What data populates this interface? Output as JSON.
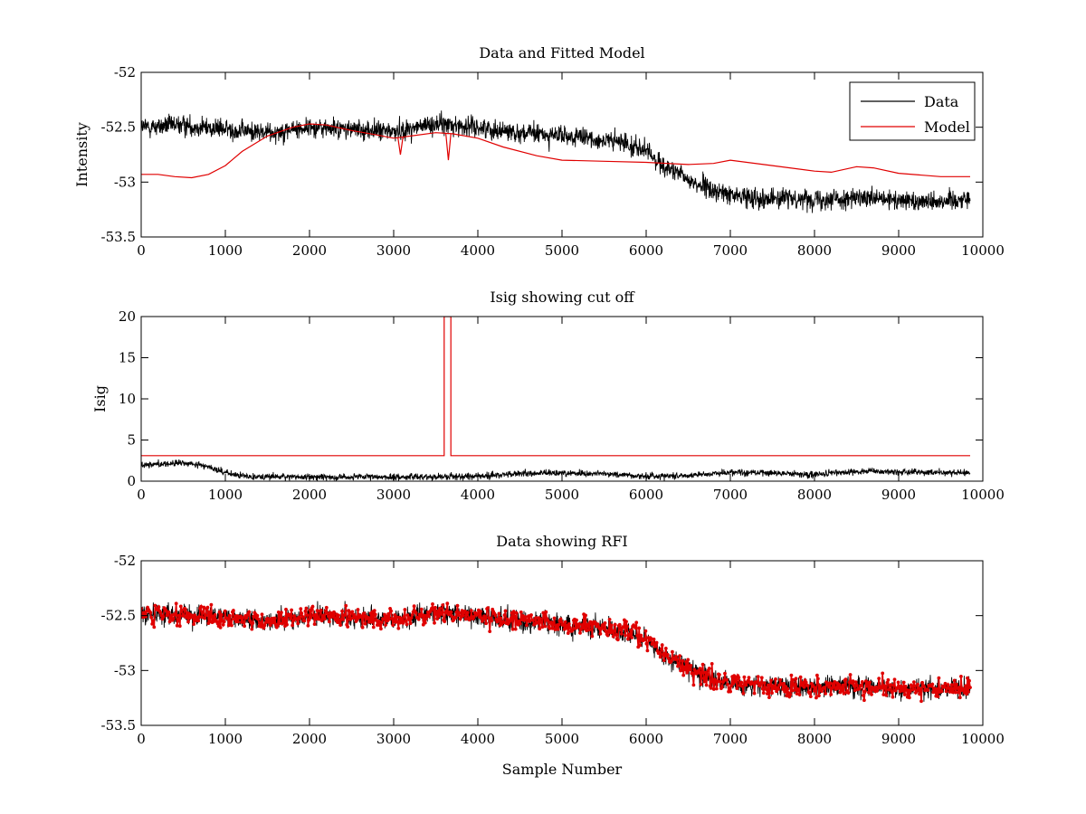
{
  "chart_data": [
    {
      "type": "line",
      "title": "Data and Fitted Model",
      "xlabel": "",
      "ylabel": "Intensity",
      "xlim": [
        0,
        10000
      ],
      "ylim": [
        -53.5,
        -52
      ],
      "xticks": [
        0,
        1000,
        2000,
        3000,
        4000,
        5000,
        6000,
        7000,
        8000,
        9000,
        10000
      ],
      "yticks": [
        -53.5,
        -53,
        -52.5,
        -52
      ],
      "xtick_labels": [
        "0",
        "1000",
        "2000",
        "3000",
        "4000",
        "5000",
        "6000",
        "7000",
        "8000",
        "9000",
        "10000"
      ],
      "ytick_labels": [
        "-53.5",
        "-53",
        "-52.5",
        "-52"
      ],
      "grid": false,
      "legend_position": "top-right",
      "legend": [
        "Data",
        "Model"
      ],
      "x_range": [
        0,
        9850
      ],
      "series": [
        {
          "name": "Data",
          "color": "#000000",
          "noise": 0.08,
          "x": [
            0,
            500,
            1000,
            1500,
            2000,
            2500,
            3000,
            3500,
            4000,
            4500,
            5000,
            5500,
            5800,
            6000,
            6200,
            6500,
            6800,
            7000,
            7500,
            8000,
            8500,
            9000,
            9500,
            9850
          ],
          "y": [
            -52.5,
            -52.48,
            -52.52,
            -52.55,
            -52.5,
            -52.52,
            -52.54,
            -52.47,
            -52.5,
            -52.55,
            -52.58,
            -52.62,
            -52.65,
            -52.72,
            -52.85,
            -52.98,
            -53.08,
            -53.12,
            -53.15,
            -53.15,
            -53.15,
            -53.17,
            -53.17,
            -53.15
          ]
        },
        {
          "name": "Model",
          "color": "#e00000",
          "noise": 0,
          "x": [
            0,
            200,
            400,
            600,
            800,
            1000,
            1200,
            1500,
            1800,
            2000,
            2200,
            2500,
            2800,
            3000,
            3200,
            3500,
            3700,
            4000,
            4300,
            4700,
            5000,
            5500,
            6000,
            6500,
            6800,
            7000,
            7500,
            8000,
            8200,
            8500,
            8700,
            9000,
            9500,
            9850
          ],
          "y": [
            -52.93,
            -52.93,
            -52.95,
            -52.96,
            -52.93,
            -52.85,
            -52.72,
            -52.58,
            -52.5,
            -52.47,
            -52.48,
            -52.53,
            -52.57,
            -52.6,
            -52.58,
            -52.55,
            -52.56,
            -52.6,
            -52.68,
            -52.76,
            -52.8,
            -52.81,
            -52.82,
            -52.84,
            -52.83,
            -52.8,
            -52.85,
            -52.9,
            -52.91,
            -52.86,
            -52.87,
            -52.92,
            -52.95,
            -52.95
          ]
        }
      ],
      "dips": [
        {
          "x": 3080,
          "y": -52.75
        },
        {
          "x": 3650,
          "y": -52.8
        }
      ]
    },
    {
      "type": "line",
      "title": "Isig showing cut off",
      "xlabel": "",
      "ylabel": "Isig",
      "xlim": [
        0,
        10000
      ],
      "ylim": [
        0,
        20
      ],
      "xticks": [
        0,
        1000,
        2000,
        3000,
        4000,
        5000,
        6000,
        7000,
        8000,
        9000,
        10000
      ],
      "yticks": [
        0,
        5,
        10,
        15,
        20
      ],
      "xtick_labels": [
        "0",
        "1000",
        "2000",
        "3000",
        "4000",
        "5000",
        "6000",
        "7000",
        "8000",
        "9000",
        "10000"
      ],
      "ytick_labels": [
        "0",
        "5",
        "10",
        "15",
        "20"
      ],
      "grid": false,
      "x_range": [
        0,
        9850
      ],
      "series": [
        {
          "name": "Isig",
          "color": "#000000",
          "noise": 0.35,
          "x": [
            0,
            500,
            800,
            1000,
            1200,
            2000,
            3000,
            4000,
            4500,
            5000,
            5500,
            6000,
            6500,
            7000,
            7500,
            8000,
            8500,
            9000,
            9850
          ],
          "y": [
            2.0,
            2.2,
            1.8,
            1.0,
            0.6,
            0.5,
            0.5,
            0.6,
            0.9,
            1.0,
            0.9,
            0.6,
            0.7,
            1.1,
            1.0,
            0.8,
            1.2,
            1.1,
            1.0
          ]
        },
        {
          "name": "Cut-off",
          "color": "#e00000",
          "noise": 0,
          "x": [
            0,
            3600,
            3600,
            3680,
            3680,
            9850
          ],
          "y": [
            3.1,
            3.1,
            20,
            20,
            3.1,
            3.1
          ]
        }
      ]
    },
    {
      "type": "line",
      "title": "Data showing RFI",
      "xlabel": "Sample Number",
      "ylabel": "",
      "xlim": [
        0,
        10000
      ],
      "ylim": [
        -53.5,
        -52
      ],
      "xticks": [
        0,
        1000,
        2000,
        3000,
        4000,
        5000,
        6000,
        7000,
        8000,
        9000,
        10000
      ],
      "yticks": [
        -53.5,
        -53,
        -52.5,
        -52
      ],
      "xtick_labels": [
        "0",
        "1000",
        "2000",
        "3000",
        "4000",
        "5000",
        "6000",
        "7000",
        "8000",
        "9000",
        "10000"
      ],
      "ytick_labels": [
        "-53.5",
        "-53",
        "-52.5",
        "-52"
      ],
      "grid": false,
      "x_range": [
        0,
        9850
      ],
      "series": [
        {
          "name": "Data",
          "color": "#000000",
          "noise": 0.08,
          "x": [
            0,
            500,
            1000,
            1500,
            2000,
            2500,
            3000,
            3500,
            4000,
            4500,
            5000,
            5500,
            5800,
            6000,
            6200,
            6500,
            6800,
            7000,
            7500,
            8000,
            8500,
            9000,
            9500,
            9850
          ],
          "y": [
            -52.5,
            -52.48,
            -52.52,
            -52.55,
            -52.5,
            -52.52,
            -52.54,
            -52.47,
            -52.5,
            -52.55,
            -52.58,
            -52.62,
            -52.65,
            -52.72,
            -52.85,
            -52.98,
            -53.08,
            -53.12,
            -53.15,
            -53.15,
            -53.15,
            -53.17,
            -53.17,
            -53.15
          ]
        },
        {
          "name": "RFI",
          "color": "#e00000",
          "marker": "dot",
          "noise": 0.08,
          "x": [
            0,
            500,
            1000,
            1500,
            2000,
            2500,
            3000,
            3500,
            4000,
            4500,
            5000,
            5500,
            5800,
            6000,
            6200,
            6500,
            6800,
            7000,
            7500,
            8000,
            8500,
            9000,
            9500,
            9850
          ],
          "y": [
            -52.5,
            -52.48,
            -52.52,
            -52.55,
            -52.5,
            -52.52,
            -52.54,
            -52.47,
            -52.5,
            -52.55,
            -52.58,
            -52.62,
            -52.65,
            -52.72,
            -52.85,
            -52.98,
            -53.08,
            -53.12,
            -53.15,
            -53.15,
            -53.15,
            -53.17,
            -53.17,
            -53.15
          ]
        }
      ]
    }
  ]
}
